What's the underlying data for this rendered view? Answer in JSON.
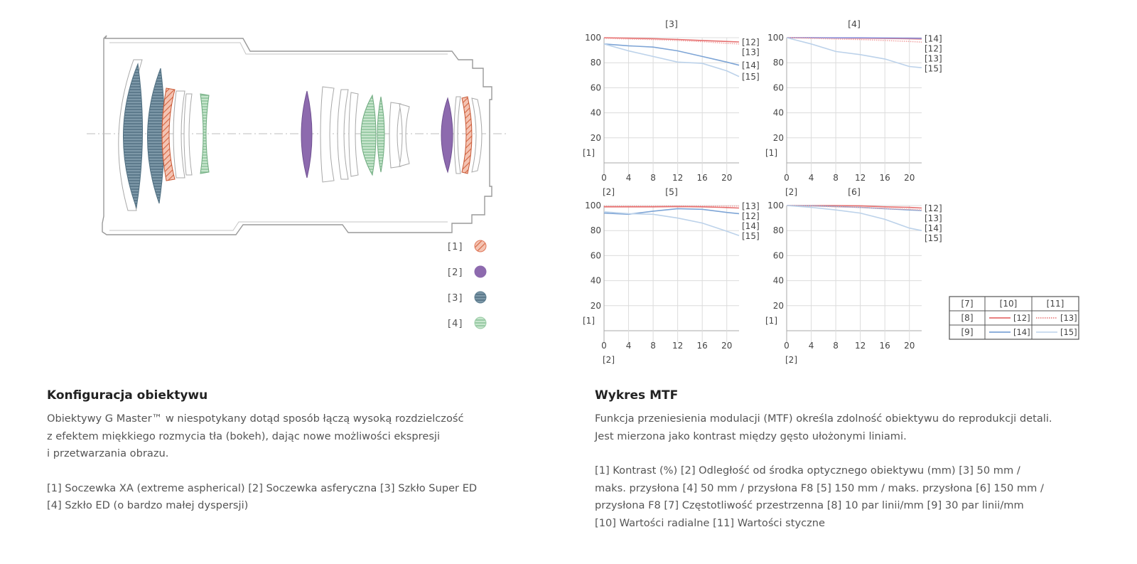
{
  "lens_diagram": {
    "legend": [
      {
        "label": "[1]",
        "name": "xa",
        "color": "#e07b5e",
        "pattern": "hatch"
      },
      {
        "label": "[2]",
        "name": "aspherical",
        "color": "#8d6aae",
        "pattern": "solid"
      },
      {
        "label": "[3]",
        "name": "super-ed",
        "color": "#5e7f91",
        "pattern": "lines"
      },
      {
        "label": "[4]",
        "name": "ed",
        "color": "#9ccda7",
        "pattern": "lines"
      }
    ]
  },
  "chart_data": [
    {
      "type": "line",
      "title": "[3]",
      "xlabel": "[2]",
      "ylabel": "[1]",
      "xlim": [
        0,
        22
      ],
      "ylim": [
        0,
        100
      ],
      "xticks": [
        "0",
        "4",
        "8",
        "12",
        "16",
        "20"
      ],
      "yticks": [
        "20",
        "40",
        "60",
        "80",
        "100"
      ],
      "series": [
        {
          "name": "[12]",
          "color": "#e66f6f",
          "dash": "solid",
          "x": [
            0,
            4,
            8,
            12,
            16,
            20,
            22
          ],
          "values": [
            100,
            99.6,
            99.2,
            98.6,
            97.8,
            97,
            96.6
          ]
        },
        {
          "name": "[13]",
          "color": "#f2a6a6",
          "dash": "dotted",
          "x": [
            0,
            4,
            8,
            12,
            16,
            20,
            22
          ],
          "values": [
            99.5,
            99,
            98.5,
            97.8,
            96.8,
            95.5,
            95
          ]
        },
        {
          "name": "[14]",
          "color": "#7ea5d6",
          "dash": "solid",
          "x": [
            0,
            4,
            8,
            12,
            16,
            20,
            22
          ],
          "values": [
            95,
            93.5,
            92.5,
            89.5,
            85,
            80.5,
            78
          ]
        },
        {
          "name": "[15]",
          "color": "#bcd2ea",
          "dash": "solid",
          "x": [
            0,
            4,
            8,
            12,
            16,
            20,
            22
          ],
          "values": [
            95,
            89.5,
            85,
            80.5,
            79.5,
            73.5,
            69
          ]
        }
      ]
    },
    {
      "type": "line",
      "title": "[4]",
      "xlabel": "[2]",
      "ylabel": "[1]",
      "xlim": [
        0,
        22
      ],
      "ylim": [
        0,
        100
      ],
      "xticks": [
        "0",
        "4",
        "8",
        "12",
        "16",
        "20"
      ],
      "yticks": [
        "20",
        "40",
        "60",
        "80",
        "100"
      ],
      "series": [
        {
          "name": "[12]",
          "color": "#e66f6f",
          "dash": "solid",
          "x": [
            0,
            4,
            8,
            12,
            16,
            20,
            22
          ],
          "values": [
            100,
            99.9,
            99.8,
            99.6,
            99.4,
            99.2,
            99
          ]
        },
        {
          "name": "[14]",
          "color": "#8a8ed8",
          "dash": "solid",
          "x": [
            0,
            4,
            8,
            12,
            16,
            20,
            22
          ],
          "values": [
            100,
            100,
            99.9,
            99.9,
            99.8,
            99.6,
            99.5
          ]
        },
        {
          "name": "[13]",
          "color": "#f2a6a6",
          "dash": "dotted",
          "x": [
            0,
            4,
            8,
            12,
            16,
            20,
            22
          ],
          "values": [
            100,
            99.5,
            99,
            98.5,
            97.8,
            97,
            96.5
          ]
        },
        {
          "name": "[15]",
          "color": "#bcd2ea",
          "dash": "solid",
          "x": [
            0,
            4,
            8,
            12,
            16,
            20,
            22
          ],
          "values": [
            100,
            95,
            89,
            86.5,
            83,
            77,
            76
          ]
        }
      ]
    },
    {
      "type": "line",
      "title": "[5]",
      "xlabel": "[2]",
      "ylabel": "[1]",
      "xlim": [
        0,
        22
      ],
      "ylim": [
        0,
        100
      ],
      "xticks": [
        "0",
        "4",
        "8",
        "12",
        "16",
        "20"
      ],
      "yticks": [
        "20",
        "40",
        "60",
        "80",
        "100"
      ],
      "series": [
        {
          "name": "[13]",
          "color": "#f2a6a6",
          "dash": "dotted",
          "x": [
            0,
            4,
            8,
            12,
            16,
            20,
            22
          ],
          "values": [
            99.6,
            99.6,
            99.6,
            99.6,
            99.6,
            99.6,
            99.6
          ]
        },
        {
          "name": "[12]",
          "color": "#e66f6f",
          "dash": "solid",
          "x": [
            0,
            4,
            8,
            12,
            16,
            20,
            22
          ],
          "values": [
            99,
            99,
            99,
            99.2,
            99,
            98.4,
            98
          ]
        },
        {
          "name": "[14]",
          "color": "#7ea5d6",
          "dash": "solid",
          "x": [
            0,
            4,
            8,
            12,
            16,
            20,
            22
          ],
          "values": [
            94,
            93,
            95.5,
            97.5,
            97,
            94.5,
            93.5
          ]
        },
        {
          "name": "[15]",
          "color": "#bcd2ea",
          "dash": "solid",
          "x": [
            0,
            4,
            8,
            12,
            16,
            20,
            22
          ],
          "values": [
            95,
            93.5,
            93,
            90,
            86,
            79.5,
            76
          ]
        }
      ]
    },
    {
      "type": "line",
      "title": "[6]",
      "xlabel": "[2]",
      "ylabel": "[1]",
      "xlim": [
        0,
        22
      ],
      "ylim": [
        0,
        100
      ],
      "xticks": [
        "0",
        "4",
        "8",
        "12",
        "16",
        "20"
      ],
      "yticks": [
        "20",
        "40",
        "60",
        "80",
        "100"
      ],
      "series": [
        {
          "name": "[12]",
          "color": "#e66f6f",
          "dash": "solid",
          "x": [
            0,
            4,
            8,
            12,
            16,
            20,
            22
          ],
          "values": [
            100,
            100,
            100,
            99.8,
            99,
            98.5,
            98
          ]
        },
        {
          "name": "[14]",
          "color": "#7ea5d6",
          "dash": "solid",
          "x": [
            0,
            4,
            8,
            12,
            16,
            20,
            22
          ],
          "values": [
            100,
            99.8,
            99.2,
            98.5,
            97.5,
            96.5,
            96
          ]
        },
        {
          "name": "[13]",
          "color": "#f2a6a6",
          "dash": "dotted",
          "x": [
            0,
            4,
            8,
            12,
            16,
            20,
            22
          ],
          "values": [
            100,
            99.6,
            99,
            98.6,
            97.6,
            97,
            96.5
          ]
        },
        {
          "name": "[15]",
          "color": "#bcd2ea",
          "dash": "solid",
          "x": [
            0,
            4,
            8,
            12,
            16,
            20,
            22
          ],
          "values": [
            100,
            98.5,
            96.5,
            94,
            89,
            82,
            80
          ]
        }
      ]
    }
  ],
  "mtf_legend": {
    "headers": [
      "[7]",
      "[10]",
      "[11]"
    ],
    "rows": [
      {
        "label": "[8]",
        "radial": "[12]",
        "tangential": "[13]",
        "radial_color": "#e66f6f",
        "tangential_color": "#e66f6f"
      },
      {
        "label": "[9]",
        "radial": "[14]",
        "tangential": "[15]",
        "radial_color": "#7ea5d6",
        "tangential_color": "#bcd2ea"
      }
    ]
  },
  "left_section": {
    "title": "Konfiguracja obiektywu",
    "description_lines": [
      "Obiektywy G Master™ w niespotykany dotąd sposób łączą wysoką rozdzielczość",
      "z efektem miękkiego rozmycia tła (bokeh), dając nowe możliwości ekspresji",
      "i przetwarzania obrazu."
    ],
    "legend_lines": [
      "[1] Soczewka XA (extreme aspherical)   [2] Soczewka asferyczna   [3] Szkło Super ED",
      "[4] Szkło ED (o bardzo małej dyspersji)"
    ]
  },
  "right_section": {
    "title": "Wykres MTF",
    "description_lines": [
      "Funkcja przeniesienia modulacji (MTF) określa zdolność obiektywu do reprodukcji detali.",
      "Jest mierzona jako kontrast między gęsto ułożonymi liniami."
    ],
    "legend_lines": [
      "[1] Kontrast (%)   [2] Odległość od środka optycznego obiektywu (mm)   [3] 50 mm /",
      "maks. przysłona   [4] 50 mm / przysłona F8   [5] 150 mm / maks. przysłona   [6] 150 mm /",
      "przysłona F8   [7] Częstotliwość przestrzenna   [8] 10 par linii/mm   [9] 30 par linii/mm",
      "[10] Wartości radialne   [11] Wartości styczne"
    ]
  }
}
